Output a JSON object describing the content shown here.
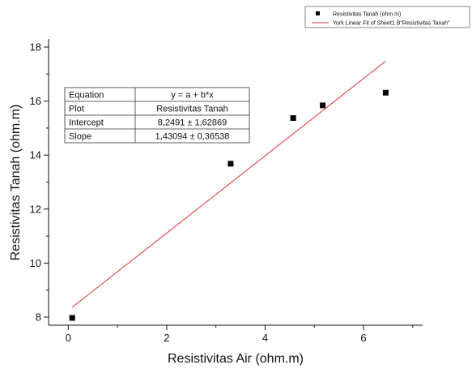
{
  "chart_data": {
    "type": "scatter",
    "xlabel": "Resistivitas Air (ohm.m)",
    "ylabel": "Resistivitas Tanah (ohm.m)",
    "xlim": [
      -0.4,
      7.2
    ],
    "ylim": [
      7.7,
      18.3
    ],
    "x_ticks": [
      0,
      2,
      4,
      6
    ],
    "y_ticks": [
      8,
      10,
      12,
      14,
      16,
      18
    ],
    "grid": false,
    "legend_position": "top-right",
    "series": [
      {
        "name": "Resistivitas Tanah (ohm.m)",
        "marker": "square",
        "color": "#000000",
        "x": [
          0.08,
          3.3,
          4.57,
          5.17,
          6.45
        ],
        "y": [
          7.97,
          13.68,
          15.37,
          15.84,
          16.31
        ]
      }
    ],
    "fit_line": {
      "name": "York Linear Fit of Sheet1 B\"Resistivitas Tanah\"",
      "color": "#e03030",
      "intercept": 8.2491,
      "slope": 1.43094,
      "x_range": [
        0.08,
        6.45
      ]
    },
    "stats_table": [
      {
        "label": "Equation",
        "value": "y = a + b*x"
      },
      {
        "label": "Plot",
        "value": "Resistivitas Tanah"
      },
      {
        "label": "Intercept",
        "value": "8,2491 ± 1,62869"
      },
      {
        "label": "Slope",
        "value": "1,43094 ± 0,36538"
      }
    ]
  }
}
